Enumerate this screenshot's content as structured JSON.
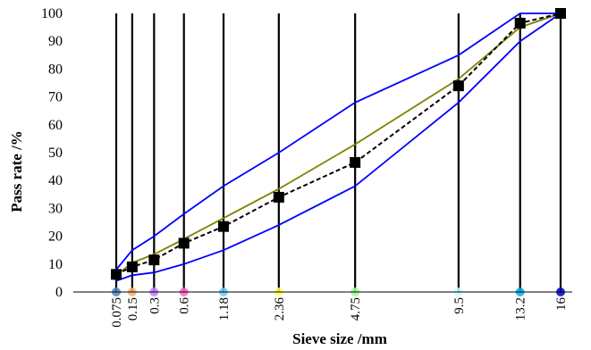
{
  "chart_data": {
    "type": "line",
    "xlabel": "Sieve size /mm",
    "ylabel": "Pass rate /%",
    "ylim": [
      0,
      100
    ],
    "yticks": [
      0,
      10,
      20,
      30,
      40,
      50,
      60,
      70,
      80,
      90,
      100
    ],
    "x_scale": "power-0.45",
    "sieves": [
      "0.075",
      "0.15",
      "0.3",
      "0.6",
      "1.18",
      "2.36",
      "4.75",
      "9.5",
      "13.2",
      "16"
    ],
    "x": [
      0.075,
      0.15,
      0.3,
      0.6,
      1.18,
      2.36,
      4.75,
      9.5,
      13.2,
      16
    ],
    "marker_colors": [
      "#4f81bd",
      "#f7b26a",
      "#c77dff",
      "#ff66cc",
      "#66ccff",
      "#ffff66",
      "#99ff99",
      "#ccffff",
      "#00b0f0",
      "#0000cc"
    ],
    "series": [
      {
        "color": "#0000ff",
        "style": "solid",
        "marker": "none",
        "values": [
          8,
          15,
          20,
          28,
          38,
          50,
          68,
          85,
          100,
          100
        ]
      },
      {
        "color": "#0000ff",
        "style": "solid",
        "marker": "none",
        "values": [
          4,
          6,
          7,
          10,
          15,
          24,
          38,
          68,
          90,
          100
        ]
      },
      {
        "color": "#808000",
        "style": "solid",
        "marker": "none",
        "values": [
          6,
          10.5,
          13.5,
          19,
          26.5,
          37,
          53,
          76.5,
          95,
          100
        ]
      },
      {
        "color": "#000000",
        "style": "dashed",
        "marker": "square",
        "values": [
          6.3,
          9,
          11.5,
          17.5,
          23.5,
          34,
          46.5,
          74,
          96.5,
          100
        ]
      }
    ]
  }
}
